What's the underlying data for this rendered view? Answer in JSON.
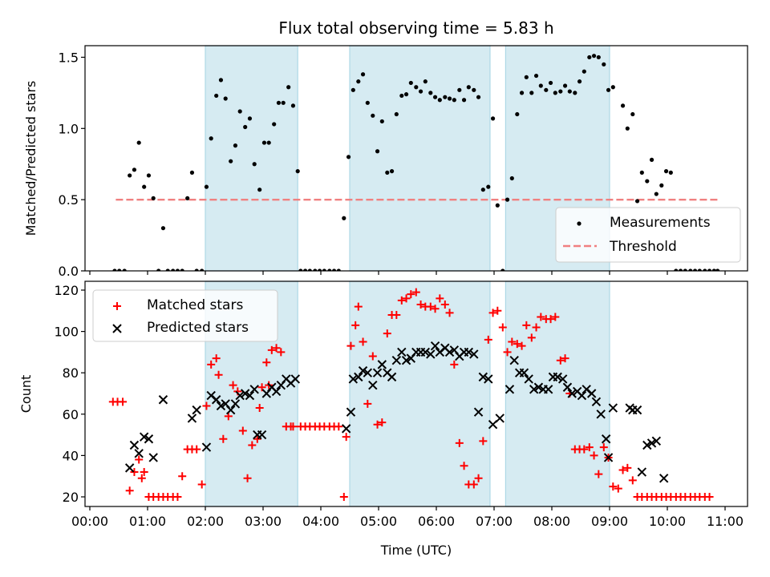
{
  "chart_data": [
    {
      "type": "scatter",
      "title": "Flux total observing time = 5.83 h",
      "xlabel": "",
      "ylabel": "Matched/Predicted stars",
      "xlim": [
        -0.05,
        11.3
      ],
      "ylim": [
        0.0,
        1.58
      ],
      "x_ticks": [
        "00:00",
        "01:00",
        "02:00",
        "03:00",
        "04:00",
        "05:00",
        "06:00",
        "07:00",
        "08:00",
        "09:00",
        "10:00",
        "11:00"
      ],
      "y_ticks": [
        "0.0",
        "0.5",
        "1.0",
        "1.5"
      ],
      "y_tick_values": [
        0.0,
        0.5,
        1.0,
        1.5
      ],
      "legend": [
        "Measurements",
        "Threshold"
      ],
      "legend_position": "lower-right",
      "shaded_intervals_hours": [
        [
          2.0,
          3.6
        ],
        [
          4.5,
          6.93
        ],
        [
          7.2,
          9.0
        ]
      ],
      "threshold": {
        "name": "Threshold",
        "value": 0.5,
        "x_range_hours": [
          0.45,
          10.87
        ],
        "color": "#f08080"
      },
      "series": [
        {
          "name": "Measurements",
          "color": "#000000",
          "x_hours": [
            0.43,
            0.51,
            0.6,
            0.69,
            0.77,
            0.85,
            0.94,
            1.02,
            1.1,
            1.19,
            1.27,
            1.35,
            1.44,
            1.52,
            1.6,
            1.69,
            1.77,
            1.85,
            1.94,
            2.02,
            2.1,
            2.19,
            2.27,
            2.35,
            2.44,
            2.52,
            2.6,
            2.69,
            2.77,
            2.85,
            2.94,
            3.02,
            3.1,
            3.19,
            3.27,
            3.35,
            3.44,
            3.52,
            3.6,
            3.65,
            3.73,
            3.81,
            3.9,
            3.98,
            4.06,
            4.15,
            4.23,
            4.31,
            4.4,
            4.48,
            4.56,
            4.65,
            4.73,
            4.81,
            4.9,
            4.98,
            5.06,
            5.15,
            5.23,
            5.31,
            5.4,
            5.48,
            5.56,
            5.65,
            5.73,
            5.81,
            5.9,
            5.98,
            6.06,
            6.15,
            6.23,
            6.31,
            6.4,
            6.48,
            6.56,
            6.65,
            6.73,
            6.81,
            6.9,
            6.98,
            7.06,
            7.15,
            7.23,
            7.31,
            7.4,
            7.48,
            7.56,
            7.65,
            7.73,
            7.81,
            7.9,
            7.98,
            8.06,
            8.15,
            8.23,
            8.31,
            8.4,
            8.48,
            8.56,
            8.65,
            8.73,
            8.81,
            8.9,
            8.98,
            9.06,
            9.23,
            9.31,
            9.4,
            9.48,
            9.56,
            9.65,
            9.73,
            9.81,
            9.9,
            9.98,
            10.06,
            10.15,
            10.23,
            10.31,
            10.4,
            10.48,
            10.56,
            10.65,
            10.73,
            10.81,
            10.87
          ],
          "y": [
            0,
            0,
            0,
            0.67,
            0.71,
            0.9,
            0.59,
            0.67,
            0.51,
            0,
            0.3,
            0,
            0,
            0,
            0,
            0.51,
            0.69,
            0,
            0,
            0.59,
            0.93,
            1.23,
            1.34,
            1.21,
            0.77,
            0.88,
            1.12,
            1.01,
            1.07,
            0.75,
            0.57,
            0.9,
            0.9,
            1.03,
            1.18,
            1.18,
            1.29,
            1.16,
            0.7,
            0,
            0,
            0,
            0,
            0,
            0,
            0,
            0,
            0,
            0.37,
            0.8,
            1.27,
            1.33,
            1.38,
            1.18,
            1.09,
            0.84,
            1.05,
            0.69,
            0.7,
            1.1,
            1.23,
            1.24,
            1.32,
            1.29,
            1.26,
            1.33,
            1.25,
            1.22,
            1.2,
            1.22,
            1.21,
            1.2,
            1.27,
            1.2,
            1.29,
            1.27,
            1.22,
            0.57,
            0.59,
            1.07,
            0.46,
            0,
            0.5,
            0.65,
            1.1,
            1.25,
            1.36,
            1.25,
            1.37,
            1.3,
            1.27,
            1.32,
            1.25,
            1.26,
            1.3,
            1.26,
            1.25,
            1.33,
            1.4,
            1.5,
            1.51,
            1.5,
            1.45,
            1.27,
            1.29,
            1.16,
            1.0,
            1.1,
            0.49,
            0.69,
            0.63,
            0.78,
            0.54,
            0.6,
            0.7,
            0.69,
            0,
            0,
            0,
            0,
            0,
            0,
            0,
            0,
            0,
            0,
            0,
            0
          ]
        }
      ]
    },
    {
      "type": "scatter",
      "title": "",
      "xlabel": "Time (UTC)",
      "ylabel": "Count",
      "xlim": [
        -0.05,
        11.3
      ],
      "ylim": [
        15,
        124
      ],
      "x_ticks": [
        "00:00",
        "01:00",
        "02:00",
        "03:00",
        "04:00",
        "05:00",
        "06:00",
        "07:00",
        "08:00",
        "09:00",
        "10:00",
        "11:00"
      ],
      "y_ticks": [
        "20",
        "40",
        "60",
        "80",
        "100",
        "120"
      ],
      "y_tick_values": [
        20,
        40,
        60,
        80,
        100,
        120
      ],
      "legend": [
        "Matched stars",
        "Predicted stars"
      ],
      "legend_position": "upper-left",
      "shaded_intervals_hours": [
        [
          2.0,
          3.6
        ],
        [
          4.5,
          6.93
        ],
        [
          7.2,
          9.0
        ]
      ],
      "series": [
        {
          "name": "Matched stars",
          "marker": "+",
          "color": "#ff0000",
          "x_hours": [
            0.4,
            0.48,
            0.57,
            0.69,
            0.77,
            0.85,
            0.9,
            0.94,
            1.02,
            1.1,
            1.19,
            1.27,
            1.35,
            1.44,
            1.52,
            1.6,
            1.69,
            1.77,
            1.85,
            1.94,
            2.02,
            2.1,
            2.19,
            2.23,
            2.31,
            2.4,
            2.48,
            2.56,
            2.65,
            2.73,
            2.81,
            2.9,
            2.94,
            2.98,
            3.06,
            3.1,
            3.15,
            3.23,
            3.31,
            3.4,
            3.48,
            3.52,
            3.65,
            3.73,
            3.81,
            3.9,
            3.98,
            4.06,
            4.15,
            4.23,
            4.31,
            4.4,
            4.44,
            4.52,
            4.6,
            4.65,
            4.73,
            4.81,
            4.9,
            4.98,
            5.06,
            5.15,
            5.23,
            5.31,
            5.4,
            5.48,
            5.56,
            5.65,
            5.73,
            5.81,
            5.9,
            5.98,
            6.06,
            6.15,
            6.23,
            6.31,
            6.4,
            6.48,
            6.56,
            6.65,
            6.73,
            6.81,
            6.9,
            6.98,
            7.06,
            7.15,
            7.23,
            7.31,
            7.4,
            7.48,
            7.56,
            7.65,
            7.73,
            7.81,
            7.9,
            7.98,
            8.06,
            8.15,
            8.23,
            8.31,
            8.4,
            8.48,
            8.56,
            8.65,
            8.73,
            8.81,
            8.9,
            8.98,
            9.06,
            9.15,
            9.23,
            9.31,
            9.4,
            9.48,
            9.56,
            9.65,
            9.73,
            9.81,
            9.9,
            9.98,
            10.06,
            10.15,
            10.23,
            10.31,
            10.4,
            10.48,
            10.56,
            10.65,
            10.73,
            10.81,
            10.87
          ],
          "y": [
            66,
            66,
            66,
            23,
            32,
            38,
            29,
            32,
            20,
            20,
            20,
            20,
            20,
            20,
            20,
            30,
            43,
            43,
            43,
            26,
            64,
            84,
            87,
            79,
            48,
            59,
            74,
            71,
            52,
            29,
            45,
            48,
            63,
            73,
            85,
            74,
            91,
            92,
            90,
            54,
            54,
            54,
            54,
            54,
            54,
            54,
            54,
            54,
            54,
            54,
            54,
            20,
            49,
            93,
            103,
            112,
            95,
            65,
            88,
            55,
            56,
            99,
            108,
            108,
            115,
            116,
            118,
            119,
            113,
            112,
            112,
            111,
            116,
            113,
            109,
            84,
            46,
            35,
            26,
            26,
            29,
            47,
            96,
            109,
            110,
            102,
            90,
            95,
            94,
            93,
            103,
            97,
            102,
            107,
            106,
            106,
            107,
            86,
            87,
            70,
            43,
            43,
            43,
            44,
            40,
            31,
            44,
            39,
            25,
            24,
            33,
            34,
            28,
            20,
            20,
            20,
            20,
            20,
            20,
            20,
            20,
            20,
            20,
            20,
            20,
            20,
            20,
            20,
            20
          ]
        },
        {
          "name": "Predicted stars",
          "marker": "x",
          "color": "#000000",
          "x_hours": [
            0.69,
            0.77,
            0.85,
            0.94,
            1.02,
            1.1,
            1.27,
            1.77,
            1.85,
            2.02,
            2.1,
            2.19,
            2.27,
            2.35,
            2.44,
            2.52,
            2.6,
            2.69,
            2.77,
            2.85,
            2.9,
            2.98,
            3.06,
            3.15,
            3.23,
            3.31,
            3.4,
            3.48,
            3.56,
            4.44,
            4.52,
            4.56,
            4.65,
            4.73,
            4.81,
            4.9,
            4.98,
            5.06,
            5.15,
            5.23,
            5.31,
            5.4,
            5.48,
            5.56,
            5.65,
            5.73,
            5.81,
            5.9,
            5.98,
            6.06,
            6.15,
            6.23,
            6.31,
            6.4,
            6.48,
            6.56,
            6.65,
            6.73,
            6.81,
            6.9,
            6.98,
            7.1,
            7.27,
            7.35,
            7.44,
            7.52,
            7.6,
            7.69,
            7.77,
            7.85,
            7.94,
            8.02,
            8.1,
            8.19,
            8.27,
            8.35,
            8.44,
            8.52,
            8.6,
            8.69,
            8.77,
            8.85,
            8.94,
            8.98,
            9.06,
            9.35,
            9.4,
            9.48,
            9.56,
            9.65,
            9.73,
            9.81,
            9.94
          ],
          "y": [
            34,
            45,
            41,
            49,
            48,
            39,
            67,
            58,
            62,
            44,
            69,
            67,
            64,
            65,
            62,
            65,
            69,
            70,
            69,
            72,
            50,
            50,
            70,
            73,
            71,
            74,
            77,
            75,
            77,
            53,
            61,
            77,
            78,
            81,
            80,
            74,
            80,
            84,
            80,
            78,
            86,
            90,
            86,
            87,
            90,
            90,
            90,
            89,
            93,
            90,
            92,
            90,
            91,
            88,
            90,
            90,
            89,
            61,
            78,
            77,
            55,
            58,
            72,
            86,
            80,
            80,
            77,
            72,
            73,
            72,
            72,
            78,
            78,
            77,
            73,
            70,
            71,
            69,
            72,
            70,
            66,
            60,
            48,
            39,
            63,
            63,
            62,
            62,
            32,
            45,
            46,
            47,
            29
          ]
        }
      ]
    }
  ]
}
